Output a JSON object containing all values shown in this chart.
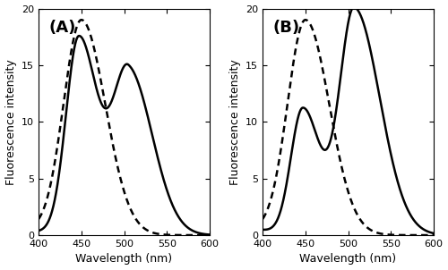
{
  "panel_A_label": "(A)",
  "panel_B_label": "(B)",
  "xlabel": "Wavelength (nm)",
  "ylabel": "Fluorescence intensity",
  "xlim": [
    400,
    600
  ],
  "ylim": [
    0,
    20
  ],
  "yticks": [
    0,
    5,
    10,
    15,
    20
  ],
  "xticks": [
    400,
    450,
    500,
    550,
    600
  ],
  "figsize": [
    5.0,
    3.02
  ],
  "dpi": 100
}
